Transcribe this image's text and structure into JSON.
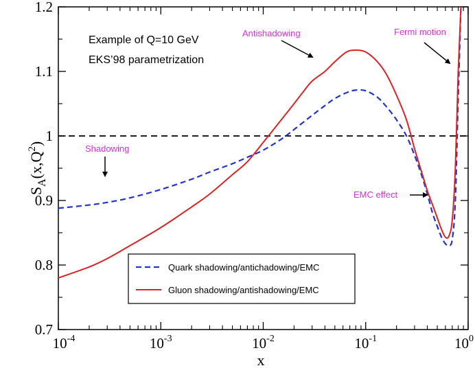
{
  "chart_data": {
    "type": "line",
    "xscale": "log",
    "xlim": [
      0.0001,
      1
    ],
    "ylim": [
      0.7,
      1.2
    ],
    "xlabel": "x",
    "ylabel_main": "S",
    "ylabel_sub": "A",
    "ylabel_args": "(x,Q",
    "ylabel_sup": "2",
    "ylabel_close": ")",
    "x_ticks": [
      {
        "value": 0.0001,
        "base": "10",
        "exp": "-4"
      },
      {
        "value": 0.001,
        "base": "10",
        "exp": "-3"
      },
      {
        "value": 0.01,
        "base": "10",
        "exp": "-2"
      },
      {
        "value": 0.1,
        "base": "10",
        "exp": "-1"
      },
      {
        "value": 1,
        "base": "10",
        "exp": "0"
      }
    ],
    "y_ticks": [
      {
        "value": 0.7,
        "label": "0.7"
      },
      {
        "value": 0.8,
        "label": "0.8"
      },
      {
        "value": 0.9,
        "label": "0.9"
      },
      {
        "value": 1.0,
        "label": "1"
      },
      {
        "value": 1.1,
        "label": "1.1"
      },
      {
        "value": 1.2,
        "label": "1.2"
      }
    ],
    "reference_line": {
      "y": 1.0,
      "style": "dashed",
      "color": "#000000"
    },
    "series": [
      {
        "name": "Quark shadowing/antichadowing/EMC",
        "color": "#2233cc",
        "style": "dashed",
        "points": [
          [
            0.0001,
            0.888
          ],
          [
            0.0002,
            0.893
          ],
          [
            0.0003,
            0.897
          ],
          [
            0.0005,
            0.904
          ],
          [
            0.001,
            0.917
          ],
          [
            0.002,
            0.933
          ],
          [
            0.003,
            0.944
          ],
          [
            0.005,
            0.957
          ],
          [
            0.007,
            0.967
          ],
          [
            0.01,
            0.978
          ],
          [
            0.015,
            0.995
          ],
          [
            0.02,
            1.01
          ],
          [
            0.03,
            1.032
          ],
          [
            0.04,
            1.047
          ],
          [
            0.05,
            1.058
          ],
          [
            0.065,
            1.067
          ],
          [
            0.08,
            1.071
          ],
          [
            0.1,
            1.07
          ],
          [
            0.13,
            1.06
          ],
          [
            0.16,
            1.045
          ],
          [
            0.2,
            1.025
          ],
          [
            0.25,
            1.0
          ],
          [
            0.3,
            0.97
          ],
          [
            0.35,
            0.94
          ],
          [
            0.4,
            0.91
          ],
          [
            0.45,
            0.88
          ],
          [
            0.5,
            0.86
          ],
          [
            0.55,
            0.843
          ],
          [
            0.6,
            0.833
          ],
          [
            0.65,
            0.83
          ],
          [
            0.7,
            0.84
          ],
          [
            0.75,
            0.9
          ],
          [
            0.8,
            1.06
          ],
          [
            0.85,
            1.2
          ]
        ]
      },
      {
        "name": "Gluon shadowing/antishadowing/EMC",
        "color": "#dd2222",
        "style": "solid",
        "points": [
          [
            0.0001,
            0.78
          ],
          [
            0.0002,
            0.797
          ],
          [
            0.0003,
            0.81
          ],
          [
            0.0005,
            0.83
          ],
          [
            0.001,
            0.858
          ],
          [
            0.002,
            0.89
          ],
          [
            0.003,
            0.91
          ],
          [
            0.005,
            0.94
          ],
          [
            0.007,
            0.96
          ],
          [
            0.01,
            0.99
          ],
          [
            0.015,
            1.025
          ],
          [
            0.02,
            1.05
          ],
          [
            0.025,
            1.07
          ],
          [
            0.03,
            1.085
          ],
          [
            0.04,
            1.1
          ],
          [
            0.05,
            1.115
          ],
          [
            0.065,
            1.13
          ],
          [
            0.08,
            1.133
          ],
          [
            0.1,
            1.13
          ],
          [
            0.13,
            1.115
          ],
          [
            0.16,
            1.095
          ],
          [
            0.2,
            1.063
          ],
          [
            0.25,
            1.025
          ],
          [
            0.3,
            0.98
          ],
          [
            0.35,
            0.945
          ],
          [
            0.4,
            0.915
          ],
          [
            0.45,
            0.893
          ],
          [
            0.5,
            0.873
          ],
          [
            0.55,
            0.855
          ],
          [
            0.6,
            0.843
          ],
          [
            0.65,
            0.845
          ],
          [
            0.7,
            0.87
          ],
          [
            0.75,
            0.95
          ],
          [
            0.8,
            1.1
          ],
          [
            0.85,
            1.2
          ]
        ]
      }
    ],
    "annotations": {
      "info_line1": "Example of Q=10 GeV",
      "info_line2": "EKS’98 parametrization",
      "antishadowing": "Antishadowing",
      "fermi": "Fermi motion",
      "shadowing": "Shadowing",
      "emc": "EMC effect"
    },
    "legend": {
      "position": "bottom-center",
      "entries": [
        "Quark shadowing/antichadowing/EMC",
        "Gluon shadowing/antishadowing/EMC"
      ]
    },
    "annotation_color": "#d633d6"
  }
}
